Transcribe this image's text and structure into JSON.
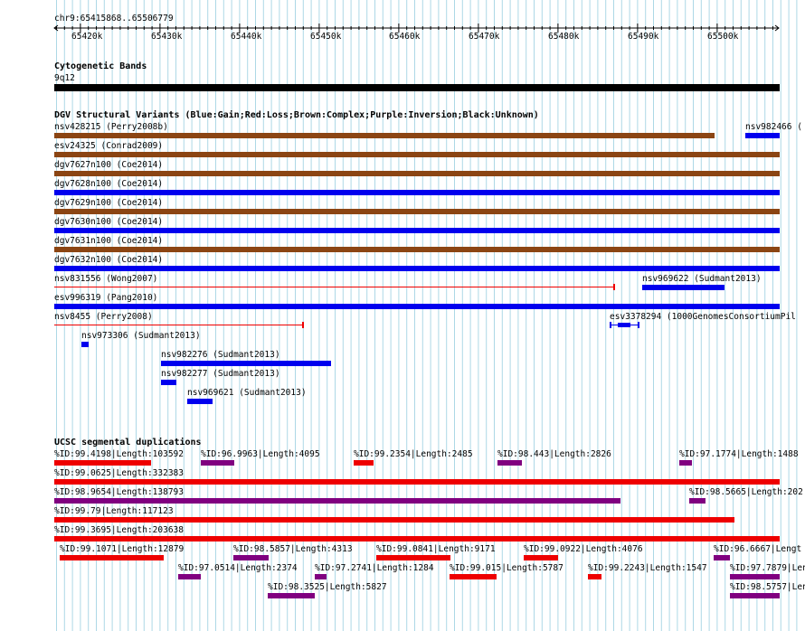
{
  "position": "chr9:65415868..65506779",
  "ruler_ticks": [
    "65420k",
    "65430k",
    "65440k",
    "65450k",
    "65460k",
    "65470k",
    "65480k",
    "65490k",
    "65500k"
  ],
  "tracks": {
    "cyto": {
      "title": "Cytogenetic Bands",
      "band": "9q12"
    },
    "dgv": {
      "title": "DGV Structural Variants (Blue:Gain;Red:Loss;Brown:Complex;Purple:Inversion;Black:Unknown)",
      "labels": {
        "nsv428215": "nsv428215 (Perry2008b)",
        "nsv982466": "nsv982466 (",
        "esv24325": "esv24325 (Conrad2009)",
        "dgv7627": "dgv7627n100 (Coe2014)",
        "dgv7628": "dgv7628n100 (Coe2014)",
        "dgv7629": "dgv7629n100 (Coe2014)",
        "dgv7630": "dgv7630n100 (Coe2014)",
        "dgv7631": "dgv7631n100 (Coe2014)",
        "dgv7632": "dgv7632n100 (Coe2014)",
        "nsv831556": "nsv831556 (Wong2007)",
        "nsv969622": "nsv969622 (Sudmant2013)",
        "esv996319": "esv996319 (Pang2010)",
        "nsv8455": "nsv8455 (Perry2008)",
        "esv3378294": "esv3378294 (1000GenomesConsortiumPil",
        "nsv973306": "nsv973306 (Sudmant2013)",
        "nsv982276": "nsv982276 (Sudmant2013)",
        "nsv982277": "nsv982277 (Sudmant2013)",
        "nsv969621": "nsv969621 (Sudmant2013)"
      }
    },
    "segdup": {
      "title": "UCSC segmental duplications",
      "labels": {
        "s1": "%ID:99.4198|Length:103592",
        "s2": "%ID:96.9963|Length:4095",
        "s3": "%ID:99.2354|Length:2485",
        "s4": "%ID:98.443|Length:2826",
        "s5": "%ID:97.1774|Length:1488",
        "s6": "%ID:99.0625|Length:332383",
        "s7": "%ID:98.9654|Length:138793",
        "s8": "%ID:98.5665|Length:202",
        "s9": "%ID:99.79|Length:117123",
        "s10": "%ID:99.3695|Length:203638",
        "s11": "%ID:99.1071|Length:12879",
        "s12": "%ID:98.5857|Length:4313",
        "s13": "%ID:99.0841|Length:9171",
        "s14": "%ID:99.0922|Length:4076",
        "s15": "%ID:96.6667|Lengt",
        "s16": "%ID:97.0514|Length:2374",
        "s17": "%ID:97.2741|Length:1284",
        "s18": "%ID:99.015|Length:5787",
        "s19": "%ID:99.2243|Length:1547",
        "s20": "%ID:97.7879|Len",
        "s21": "%ID:98.3525|Length:5827",
        "s22": "%ID:98.5757|Len"
      }
    }
  },
  "colors": {
    "gain": "#0000ee",
    "loss": "#ee0000",
    "complex": "#8b4513",
    "inversion": "#800080",
    "unknown": "#000000",
    "grid": "#add8e6"
  }
}
